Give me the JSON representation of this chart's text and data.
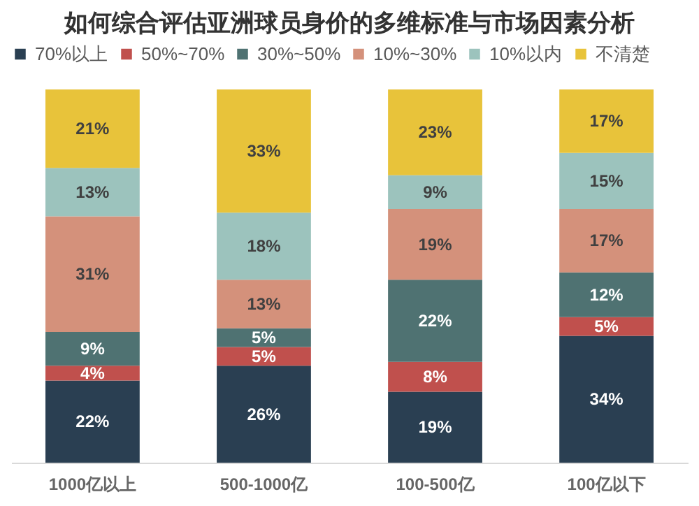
{
  "chart_data": {
    "type": "bar",
    "stacked": true,
    "title": "如何综合评估亚洲球员身价的多维标准与市场因素分析",
    "categories": [
      "1000亿以上",
      "500-1000亿",
      "100-500亿",
      "100亿以下"
    ],
    "legend": "top",
    "series": [
      {
        "name": "70%以上",
        "color": "#2a3f52",
        "values": [
          22,
          26,
          19,
          34
        ],
        "value_labels": [
          "22%",
          "26%",
          "19%",
          "34%"
        ]
      },
      {
        "name": "50%~70%",
        "color": "#c0504d",
        "values": [
          4,
          5,
          8,
          5
        ],
        "value_labels": [
          "4%",
          "5%",
          "8%",
          "5%"
        ]
      },
      {
        "name": "30%~50%",
        "color": "#4f7272",
        "values": [
          9,
          5,
          22,
          12
        ],
        "value_labels": [
          "9%",
          "5%",
          "22%",
          "12%"
        ]
      },
      {
        "name": "10%~30%",
        "color": "#d4917b",
        "values": [
          31,
          13,
          19,
          17
        ],
        "value_labels": [
          "31%",
          "13%",
          "19%",
          "17%"
        ]
      },
      {
        "name": "10%以内",
        "color": "#9cc3bd",
        "values": [
          13,
          18,
          9,
          15
        ],
        "value_labels": [
          "13%",
          "18%",
          "9%",
          "15%"
        ]
      },
      {
        "name": "不清楚",
        "color": "#e8c33a",
        "values": [
          21,
          33,
          23,
          17
        ],
        "value_labels": [
          "21%",
          "33%",
          "23%",
          "17%"
        ]
      }
    ]
  }
}
